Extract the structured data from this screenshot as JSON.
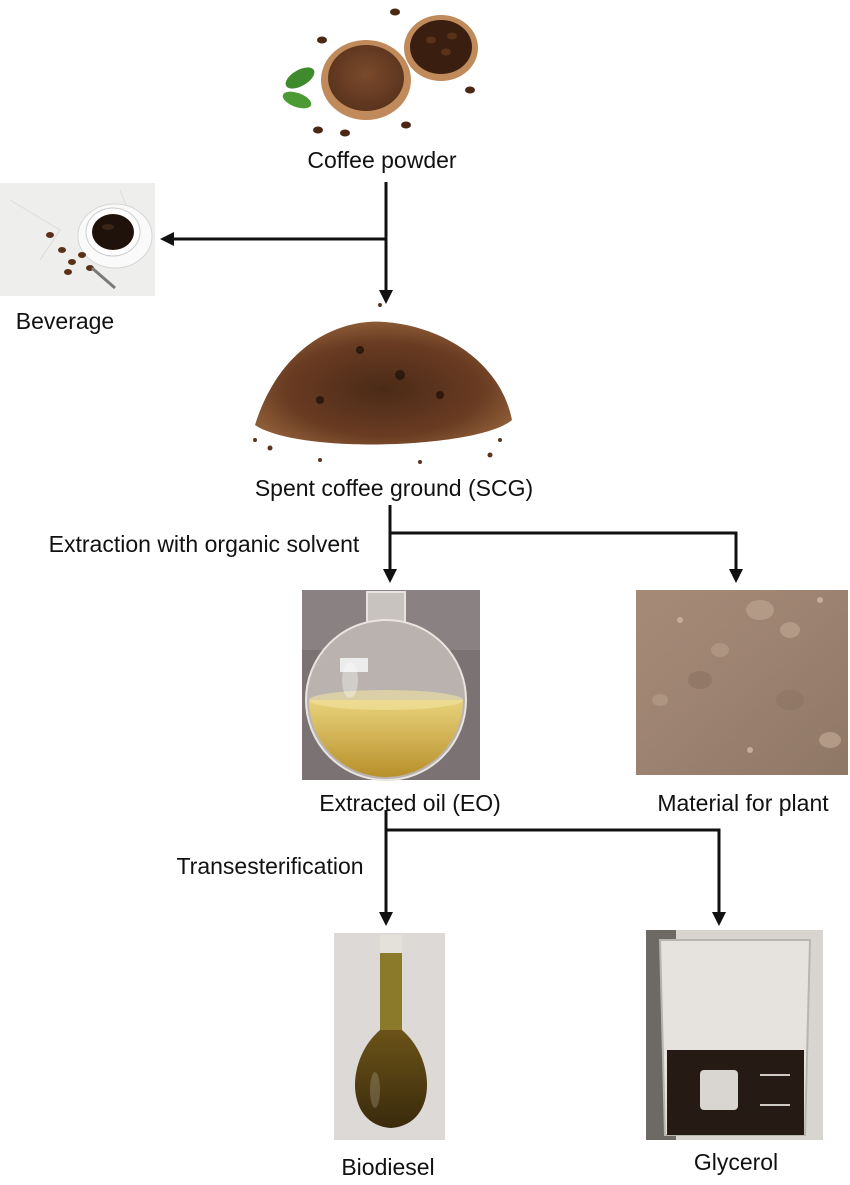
{
  "nodes": {
    "coffee_powder": "Coffee powder",
    "beverage": "Beverage",
    "spent_coffee_ground": "Spent coffee ground (SCG)",
    "extracted_oil": "Extracted oil (EO)",
    "material_for_plant": "Material for plant",
    "biodiesel": "Biodiesel",
    "glycerol": "Glycerol"
  },
  "steps": {
    "extraction": "Extraction with organic solvent",
    "transesterification": "Transesterification"
  }
}
